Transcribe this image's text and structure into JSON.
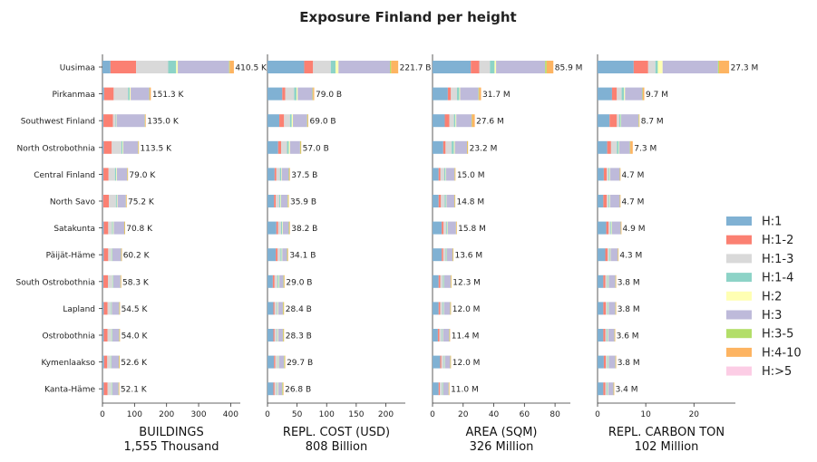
{
  "title": "Exposure Finland per height",
  "chart_data": {
    "type": "bar",
    "orientation": "horizontal-stacked",
    "categories": [
      "Uusimaa",
      "Pirkanmaa",
      "Southwest Finland",
      "North Ostrobothnia",
      "Central Finland",
      "North Savo",
      "Satakunta",
      "Päijät-Häme",
      "South Ostrobothnia",
      "Lapland",
      "Ostrobothnia",
      "Kymenlaakso",
      "Kanta-Häme"
    ],
    "legend": {
      "position": "right",
      "items": [
        {
          "name": "H:1",
          "color": "#80b1d3"
        },
        {
          "name": "H:1-2",
          "color": "#fb8072"
        },
        {
          "name": "H:1-3",
          "color": "#d9d9d9"
        },
        {
          "name": "H:1-4",
          "color": "#8dd3c7"
        },
        {
          "name": "H:2",
          "color": "#ffffb3"
        },
        {
          "name": "H:3",
          "color": "#bebada"
        },
        {
          "name": "H:3-5",
          "color": "#b3de69"
        },
        {
          "name": "H:4-10",
          "color": "#fdb462"
        },
        {
          "name": "H:>5",
          "color": "#fccde5"
        }
      ]
    },
    "panels": [
      {
        "xlabel": "BUILDINGS",
        "total": "1,555 Thousand",
        "xlim": [
          0,
          430
        ],
        "ticks": [
          0,
          100,
          200,
          300,
          400
        ],
        "labels": [
          "410.5 K",
          "151.3 K",
          "135.0 K",
          "113.5 K",
          "79.0 K",
          "75.2 K",
          "70.8 K",
          "60.2 K",
          "58.3 K",
          "54.5 K",
          "54.0 K",
          "52.6 K",
          "52.1 K"
        ],
        "rows": [
          [
            25,
            80,
            100,
            25,
            5,
            160,
            2,
            13,
            0
          ],
          [
            5,
            30,
            45,
            5,
            3,
            58,
            1,
            4,
            0
          ],
          [
            3,
            30,
            8,
            2,
            1,
            88,
            1,
            2,
            0
          ],
          [
            4,
            25,
            30,
            4,
            2,
            46,
            1,
            1,
            0
          ],
          [
            3,
            16,
            20,
            4,
            2,
            32,
            1,
            1,
            0
          ],
          [
            2,
            18,
            22,
            3,
            2,
            26,
            1,
            1,
            0
          ],
          [
            4,
            14,
            12,
            3,
            2,
            33,
            1,
            1,
            0
          ],
          [
            4,
            14,
            10,
            2,
            1,
            27,
            1,
            1,
            0
          ],
          [
            3,
            14,
            14,
            2,
            1,
            22,
            1,
            1,
            0
          ],
          [
            4,
            12,
            10,
            2,
            1,
            23,
            1,
            1,
            0
          ],
          [
            4,
            12,
            12,
            2,
            1,
            21,
            1,
            1,
            0
          ],
          [
            5,
            10,
            10,
            2,
            1,
            23,
            1,
            1,
            0
          ],
          [
            4,
            12,
            12,
            2,
            1,
            19,
            1,
            1,
            0
          ]
        ]
      },
      {
        "xlabel": "REPL. COST (USD)",
        "total": "808 Billion",
        "xlim": [
          0,
          233
        ],
        "ticks": [
          0,
          50,
          100,
          150,
          200
        ],
        "labels": [
          "221.7 B",
          "79.0 B",
          "69.0 B",
          "57.0 B",
          "37.5 B",
          "35.9 B",
          "38.2 B",
          "34.1 B",
          "29.0 B",
          "28.4 B",
          "28.3 B",
          "29.7 B",
          "26.8 B"
        ],
        "rows": [
          [
            62,
            15,
            30,
            8,
            5,
            87,
            2,
            12,
            0
          ],
          [
            25,
            5,
            15,
            4,
            2,
            25,
            1,
            2,
            0
          ],
          [
            20,
            8,
            10,
            3,
            2,
            24,
            1,
            1,
            0
          ],
          [
            18,
            5,
            10,
            3,
            2,
            17,
            1,
            1,
            0
          ],
          [
            12,
            3,
            6,
            2,
            1,
            12,
            1,
            1,
            0
          ],
          [
            11,
            3,
            6,
            2,
            1,
            11,
            1,
            1,
            0
          ],
          [
            15,
            3,
            5,
            2,
            1,
            10,
            1,
            1,
            0
          ],
          [
            14,
            3,
            5,
            2,
            1,
            8,
            1,
            1,
            0
          ],
          [
            9,
            3,
            5,
            2,
            1,
            7,
            1,
            1,
            0
          ],
          [
            10,
            2,
            4,
            1,
            1,
            8,
            1,
            1,
            0
          ],
          [
            10,
            2,
            4,
            1,
            1,
            8,
            1,
            1,
            0
          ],
          [
            11,
            2,
            4,
            1,
            1,
            9,
            1,
            1,
            0
          ],
          [
            10,
            2,
            4,
            1,
            1,
            7,
            1,
            1,
            0
          ]
        ]
      },
      {
        "xlabel": "AREA (SQM)",
        "total": "326 Million",
        "xlim": [
          0,
          90
        ],
        "ticks": [
          0,
          20,
          40,
          60,
          80
        ],
        "labels": [
          "85.9 M",
          "31.7 M",
          "27.6 M",
          "23.2 M",
          "15.0 M",
          "14.8 M",
          "15.8 M",
          "13.6 M",
          "12.3 M",
          "12.0 M",
          "11.4 M",
          "12.0 M",
          "11.0 M"
        ],
        "rows": [
          [
            25,
            5.5,
            7,
            3,
            1,
            32,
            1,
            4.4,
            0
          ],
          [
            10,
            2,
            4,
            1.5,
            0.5,
            12,
            0.4,
            1.3,
            0
          ],
          [
            8,
            3,
            3,
            1,
            0.5,
            10,
            0.3,
            1.8,
            0
          ],
          [
            7,
            1.5,
            4,
            1.5,
            0.5,
            8,
            0.2,
            0.5,
            0
          ],
          [
            4,
            1.2,
            2.5,
            0.8,
            0.3,
            5.6,
            0.2,
            0.4,
            0
          ],
          [
            4,
            1.5,
            2.5,
            0.8,
            0.3,
            5.2,
            0.2,
            0.3,
            0
          ],
          [
            6,
            1.2,
            1.8,
            0.7,
            0.3,
            5.3,
            0.2,
            0.3,
            0
          ],
          [
            6,
            1,
            1.6,
            0.6,
            0.2,
            3.7,
            0.2,
            0.3,
            0
          ],
          [
            4,
            1.1,
            1.7,
            0.6,
            0.2,
            4.2,
            0.2,
            0.3,
            0
          ],
          [
            4,
            1,
            1.6,
            0.6,
            0.2,
            4.1,
            0.2,
            0.3,
            0
          ],
          [
            3.5,
            1,
            1.6,
            0.5,
            0.2,
            4.1,
            0.2,
            0.3,
            0
          ],
          [
            5,
            0.8,
            1.6,
            0.5,
            0.2,
            3.4,
            0.2,
            0.3,
            0
          ],
          [
            4,
            0.8,
            1.5,
            0.5,
            0.2,
            3.5,
            0.2,
            0.3,
            0
          ]
        ]
      },
      {
        "xlabel": "REPL. CARBON TON",
        "total": "102 Million",
        "xlim": [
          0,
          28.6
        ],
        "ticks": [
          0,
          10,
          20
        ],
        "labels": [
          "27.3 M",
          "9.7 M",
          "8.7 M",
          "7.3 M",
          "4.7 M",
          "4.7 M",
          "4.9 M",
          "4.3 M",
          "3.8 M",
          "3.8 M",
          "3.6 M",
          "3.8 M",
          "3.4 M"
        ],
        "rows": [
          [
            7.5,
            3,
            1.5,
            0.5,
            1,
            11.5,
            0.2,
            2.1,
            0
          ],
          [
            3,
            1,
            1,
            0.5,
            0.2,
            3.6,
            0.1,
            0.3,
            0
          ],
          [
            2.5,
            1.5,
            0.5,
            0.3,
            0.1,
            3.6,
            0.1,
            0.1,
            0
          ],
          [
            2,
            0.8,
            1.2,
            0.4,
            0.1,
            2.2,
            0.1,
            0.5,
            0
          ],
          [
            1.3,
            0.6,
            0.4,
            0.2,
            0.1,
            2,
            0.05,
            0.05,
            0
          ],
          [
            1.2,
            0.7,
            0.4,
            0.2,
            0.1,
            2,
            0.05,
            0.05,
            0
          ],
          [
            1.8,
            0.5,
            0.4,
            0.2,
            0.1,
            1.8,
            0.05,
            0.05,
            0
          ],
          [
            1.6,
            0.5,
            0.3,
            0.2,
            0.1,
            1.5,
            0.05,
            0.05,
            0
          ],
          [
            1.2,
            0.4,
            0.4,
            0.2,
            0.1,
            1.4,
            0.05,
            0.05,
            0
          ],
          [
            1.2,
            0.5,
            0.3,
            0.2,
            0.1,
            1.4,
            0.05,
            0.05,
            0
          ],
          [
            1.2,
            0.4,
            0.3,
            0.2,
            0.1,
            1.3,
            0.05,
            0.05,
            0
          ],
          [
            1.3,
            0.4,
            0.3,
            0.2,
            0.1,
            1.4,
            0.05,
            0.05,
            0
          ],
          [
            1.2,
            0.4,
            0.3,
            0.2,
            0.1,
            1.1,
            0.05,
            0.05,
            0
          ]
        ]
      }
    ]
  }
}
